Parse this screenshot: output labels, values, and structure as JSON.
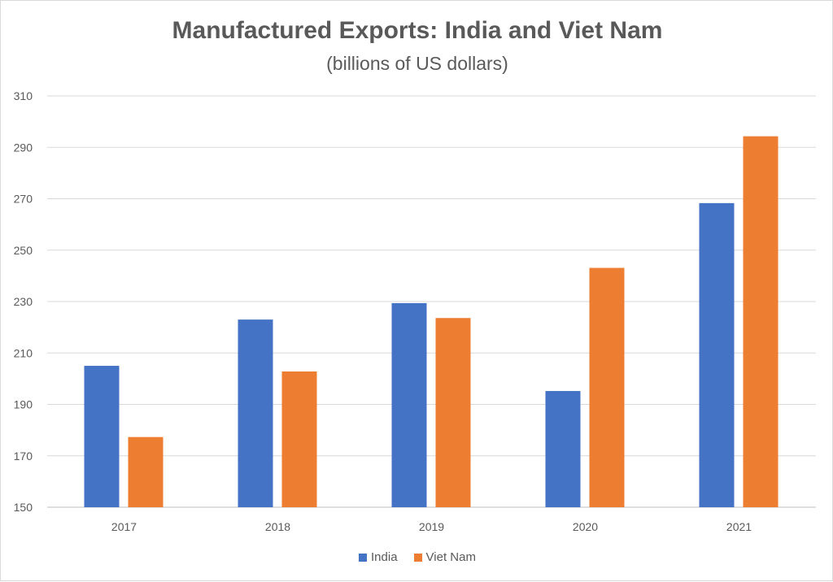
{
  "chart_data": {
    "type": "bar",
    "title": "Manufactured Exports: India and Viet Nam",
    "subtitle": "(billions of US dollars)",
    "xlabel": "",
    "ylabel": "",
    "categories": [
      "2017",
      "2018",
      "2019",
      "2020",
      "2021"
    ],
    "series": [
      {
        "name": "India",
        "color": "#4472C4",
        "values": [
          205,
          223,
          229.4,
          195.2,
          268.3
        ]
      },
      {
        "name": "Viet Nam",
        "color": "#ED7D31",
        "values": [
          177.3,
          202.8,
          223.6,
          243.1,
          294.3
        ]
      }
    ],
    "ylim": [
      150,
      310
    ],
    "yticks": [
      150,
      170,
      190,
      210,
      230,
      250,
      270,
      290,
      310
    ],
    "grid": true,
    "legend": "bottom-center"
  }
}
